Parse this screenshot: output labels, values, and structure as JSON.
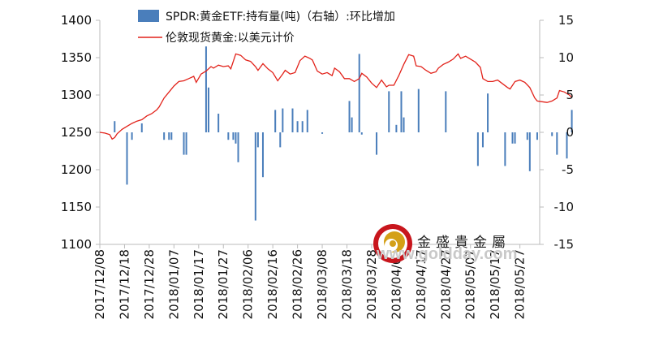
{
  "chart_data": {
    "type": "bar+line",
    "colors": {
      "bars": "#4a7ebb",
      "line": "#e2221a",
      "axis": "#bbbbbb"
    },
    "legend": [
      {
        "label": "SPDR:黄金ETF:持有量(吨)（右轴）:环比增加",
        "kind": "bar"
      },
      {
        "label": "伦敦现货黄金:以美元计价",
        "kind": "line"
      }
    ],
    "legend_position": "top",
    "left_axis": {
      "min": 1100,
      "max": 1400,
      "ticks": [
        "1100",
        "1150",
        "1200",
        "1250",
        "1300",
        "1350",
        "1400"
      ]
    },
    "right_axis": {
      "min": -15,
      "max": 15,
      "ticks": [
        "-15",
        "-10",
        "-5",
        "0",
        "5",
        "10",
        "15"
      ]
    },
    "x_tick_labels": [
      "2017/12/08",
      "2017/12/18",
      "2017/12/28",
      "2018/01/07",
      "2018/01/17",
      "2018/01/27",
      "2018/02/06",
      "2018/02/16",
      "2018/02/26",
      "2018/03/08",
      "2018/03/18",
      "2018/03/28",
      "2018/04/07",
      "2018/04/17",
      "2018/04/27",
      "2018/05/07",
      "2018/05/17",
      "2018/05/27"
    ],
    "days": 178,
    "gold_price": [
      [
        0,
        1250
      ],
      [
        2,
        1249
      ],
      [
        4,
        1247
      ],
      [
        5,
        1241
      ],
      [
        6,
        1243
      ],
      [
        7,
        1248
      ],
      [
        9,
        1254
      ],
      [
        11,
        1258
      ],
      [
        13,
        1262
      ],
      [
        15,
        1265
      ],
      [
        17,
        1267
      ],
      [
        19,
        1272
      ],
      [
        21,
        1275
      ],
      [
        23,
        1280
      ],
      [
        24,
        1284
      ],
      [
        26,
        1296
      ],
      [
        28,
        1304
      ],
      [
        30,
        1312
      ],
      [
        32,
        1318
      ],
      [
        34,
        1319
      ],
      [
        36,
        1322
      ],
      [
        38,
        1325
      ],
      [
        39,
        1317
      ],
      [
        41,
        1328
      ],
      [
        43,
        1332
      ],
      [
        45,
        1338
      ],
      [
        46,
        1336
      ],
      [
        48,
        1340
      ],
      [
        50,
        1338
      ],
      [
        52,
        1339
      ],
      [
        53,
        1335
      ],
      [
        55,
        1355
      ],
      [
        57,
        1353
      ],
      [
        59,
        1347
      ],
      [
        61,
        1345
      ],
      [
        63,
        1338
      ],
      [
        64,
        1333
      ],
      [
        66,
        1342
      ],
      [
        68,
        1335
      ],
      [
        70,
        1330
      ],
      [
        72,
        1319
      ],
      [
        74,
        1328
      ],
      [
        75,
        1333
      ],
      [
        77,
        1328
      ],
      [
        79,
        1330
      ],
      [
        81,
        1346
      ],
      [
        83,
        1352
      ],
      [
        85,
        1349
      ],
      [
        86,
        1347
      ],
      [
        88,
        1332
      ],
      [
        90,
        1328
      ],
      [
        92,
        1330
      ],
      [
        94,
        1326
      ],
      [
        95,
        1336
      ],
      [
        97,
        1331
      ],
      [
        99,
        1322
      ],
      [
        101,
        1322
      ],
      [
        103,
        1318
      ],
      [
        105,
        1322
      ],
      [
        106,
        1329
      ],
      [
        108,
        1324
      ],
      [
        110,
        1316
      ],
      [
        112,
        1310
      ],
      [
        114,
        1320
      ],
      [
        116,
        1311
      ],
      [
        117,
        1313
      ],
      [
        119,
        1313
      ],
      [
        121,
        1326
      ],
      [
        123,
        1341
      ],
      [
        125,
        1354
      ],
      [
        127,
        1352
      ],
      [
        128,
        1339
      ],
      [
        130,
        1338
      ],
      [
        132,
        1333
      ],
      [
        134,
        1329
      ],
      [
        136,
        1331
      ],
      [
        137,
        1336
      ],
      [
        139,
        1341
      ],
      [
        141,
        1344
      ],
      [
        143,
        1348
      ],
      [
        145,
        1355
      ],
      [
        146,
        1349
      ],
      [
        148,
        1352
      ],
      [
        150,
        1348
      ],
      [
        152,
        1344
      ],
      [
        154,
        1337
      ],
      [
        155,
        1322
      ],
      [
        157,
        1318
      ],
      [
        159,
        1318
      ],
      [
        161,
        1320
      ],
      [
        163,
        1315
      ],
      [
        165,
        1310
      ],
      [
        166,
        1308
      ],
      [
        168,
        1318
      ],
      [
        170,
        1320
      ],
      [
        172,
        1317
      ],
      [
        174,
        1310
      ],
      [
        176,
        1296
      ],
      [
        177,
        1292
      ],
      [
        179,
        1291
      ],
      [
        181,
        1290
      ],
      [
        183,
        1292
      ],
      [
        185,
        1296
      ],
      [
        186,
        1306
      ],
      [
        188,
        1304
      ],
      [
        190,
        1300
      ],
      [
        191,
        1297
      ]
    ],
    "spdr_change": [
      [
        6,
        1.5
      ],
      [
        11,
        -7
      ],
      [
        13,
        -1
      ],
      [
        17,
        1.2
      ],
      [
        26,
        -1
      ],
      [
        28,
        -1
      ],
      [
        29,
        -1
      ],
      [
        34,
        -3
      ],
      [
        35,
        -3
      ],
      [
        43,
        11.5
      ],
      [
        44,
        6
      ],
      [
        48,
        2.5
      ],
      [
        52,
        -1
      ],
      [
        54,
        -1
      ],
      [
        55,
        -1.5
      ],
      [
        56,
        -4
      ],
      [
        63,
        -11.8
      ],
      [
        64,
        -2
      ],
      [
        66,
        -6
      ],
      [
        71,
        3
      ],
      [
        73,
        -2
      ],
      [
        74,
        3.2
      ],
      [
        78,
        3.2
      ],
      [
        80,
        1.5
      ],
      [
        82,
        1.5
      ],
      [
        84,
        3
      ],
      [
        90,
        -0.2
      ],
      [
        101,
        4.2
      ],
      [
        102,
        2
      ],
      [
        105,
        10.5
      ],
      [
        106,
        -0.3
      ],
      [
        112,
        -3
      ],
      [
        117,
        5.5
      ],
      [
        120,
        1
      ],
      [
        122,
        5.5
      ],
      [
        123,
        2
      ],
      [
        129,
        5.8
      ],
      [
        140,
        5.5
      ],
      [
        153,
        -4.5
      ],
      [
        155,
        -2
      ],
      [
        157,
        5.2
      ],
      [
        164,
        -4.5
      ],
      [
        167,
        -1.5
      ],
      [
        168,
        -1.5
      ],
      [
        173,
        -1
      ],
      [
        174,
        -5.2
      ],
      [
        177,
        -1
      ],
      [
        183,
        -0.5
      ],
      [
        185,
        -3
      ],
      [
        189,
        -3.5
      ],
      [
        191,
        3
      ]
    ]
  },
  "watermark": {
    "company": "金盛貴金屬",
    "url": "www.goldday.com"
  }
}
